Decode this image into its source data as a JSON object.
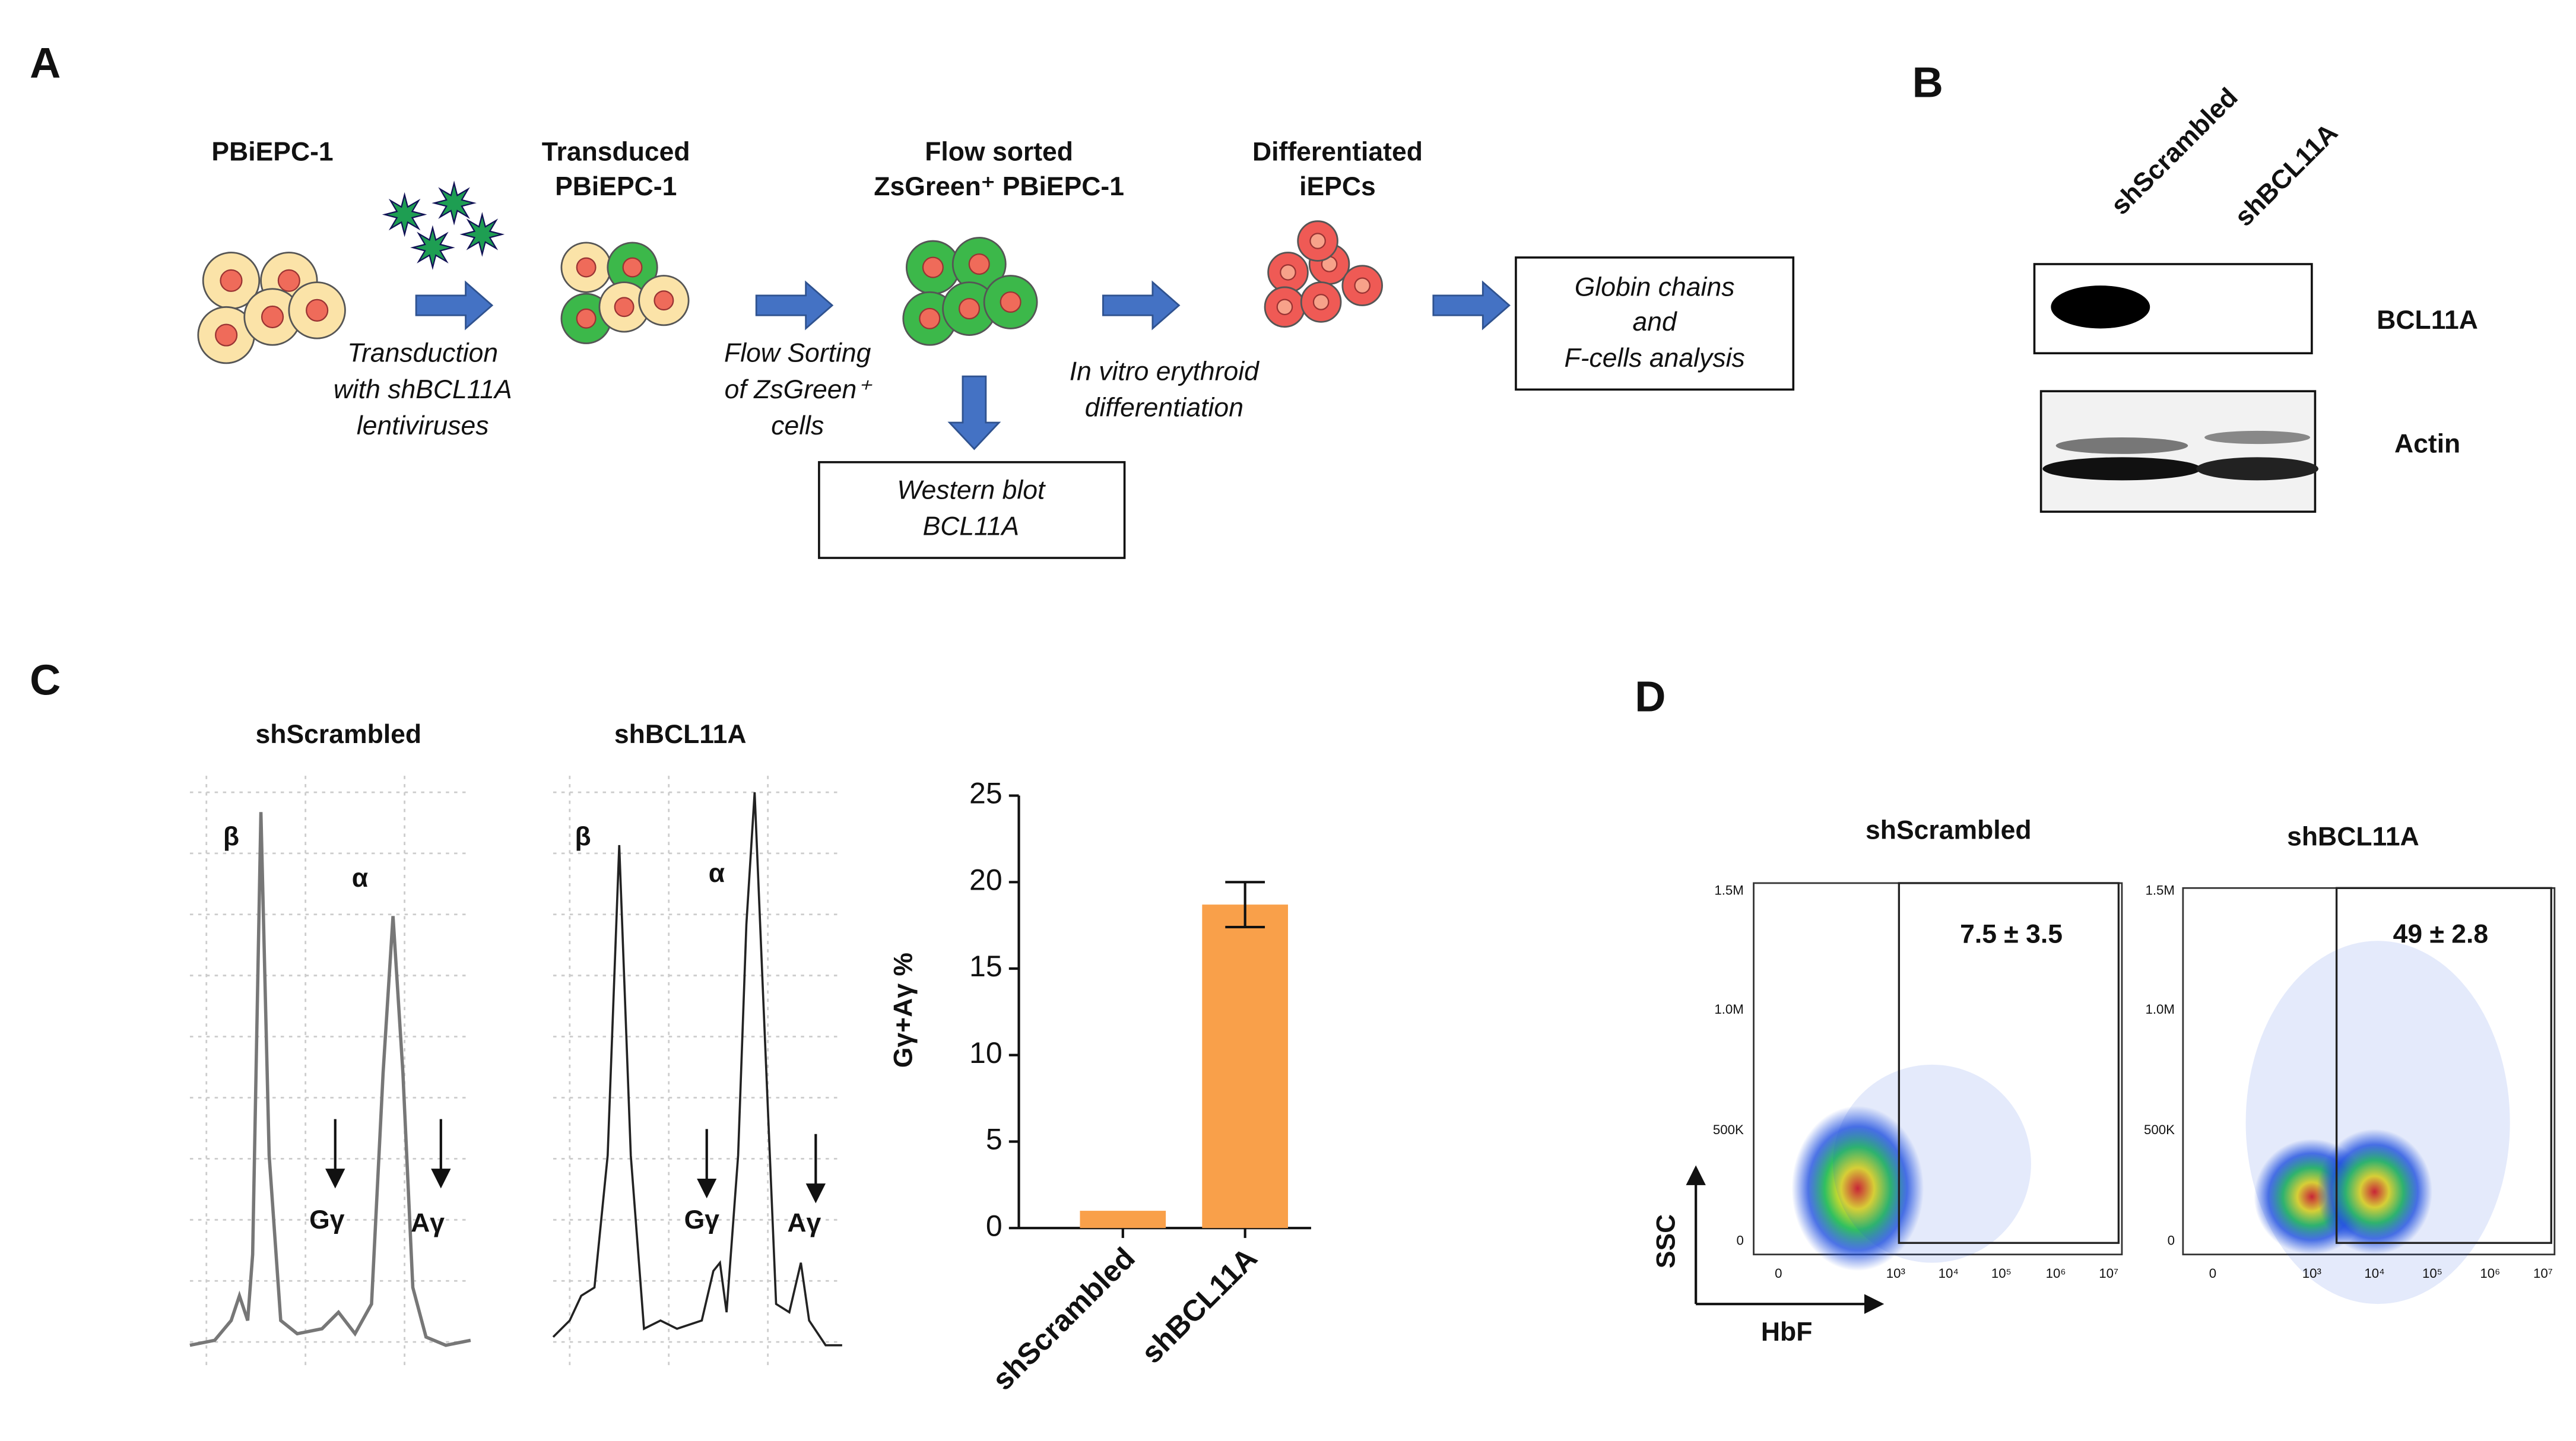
{
  "panel_labels": [
    "A",
    "B",
    "C",
    "D"
  ],
  "workflow": {
    "steps": [
      [
        "PBiEPC-1"
      ],
      [
        "Transduced",
        "PBiEPC-1"
      ],
      [
        "Flow sorted",
        "ZsGreen⁺ PBiEPC-1"
      ],
      [
        "Differentiated",
        "iEPCs"
      ]
    ],
    "arrow_labels": [
      [
        "Transduction",
        "with shBCL11A",
        "lentiviruses"
      ],
      [
        "Flow Sorting",
        "of ZsGreen⁺",
        "cells"
      ],
      [
        "In vitro erythroid",
        "differentiation"
      ]
    ],
    "boxes": [
      [
        "Globin chains",
        "and",
        "F-cells analysis"
      ],
      [
        "Western blot",
        "BCL11A"
      ]
    ]
  },
  "western_blot": {
    "lanes": [
      "shScrambled",
      "shBCL11A"
    ],
    "bands": [
      "BCL11A",
      "Actin"
    ]
  },
  "chromatograms": {
    "titles": [
      "shScrambled",
      "shBCL11A"
    ],
    "peaks": [
      "β",
      "α",
      "Gγ",
      "Aγ"
    ]
  },
  "chart_data": {
    "type": "bar",
    "categories": [
      "shScrambled",
      "shBCL11A"
    ],
    "values": [
      1.0,
      18.7
    ],
    "errors": [
      null,
      1.3
    ],
    "color": "#f9a04a",
    "ylabel": "Gγ+Aγ  %",
    "ylim": [
      0,
      25
    ],
    "yticks": [
      0,
      5,
      10,
      15,
      20,
      25
    ]
  },
  "flow": {
    "titles": [
      "shScrambled",
      "shBCL11A"
    ],
    "gate_labels": [
      "7.5 ± 3.5",
      "49 ± 2.8"
    ],
    "yticks": [
      "1.5M",
      "1.0M",
      "500K",
      "0"
    ],
    "xticks": [
      "0",
      "10³",
      "10⁴",
      "10⁵",
      "10⁶",
      "10⁷"
    ],
    "ylabel": "SSC",
    "xlabel": "HbF"
  }
}
